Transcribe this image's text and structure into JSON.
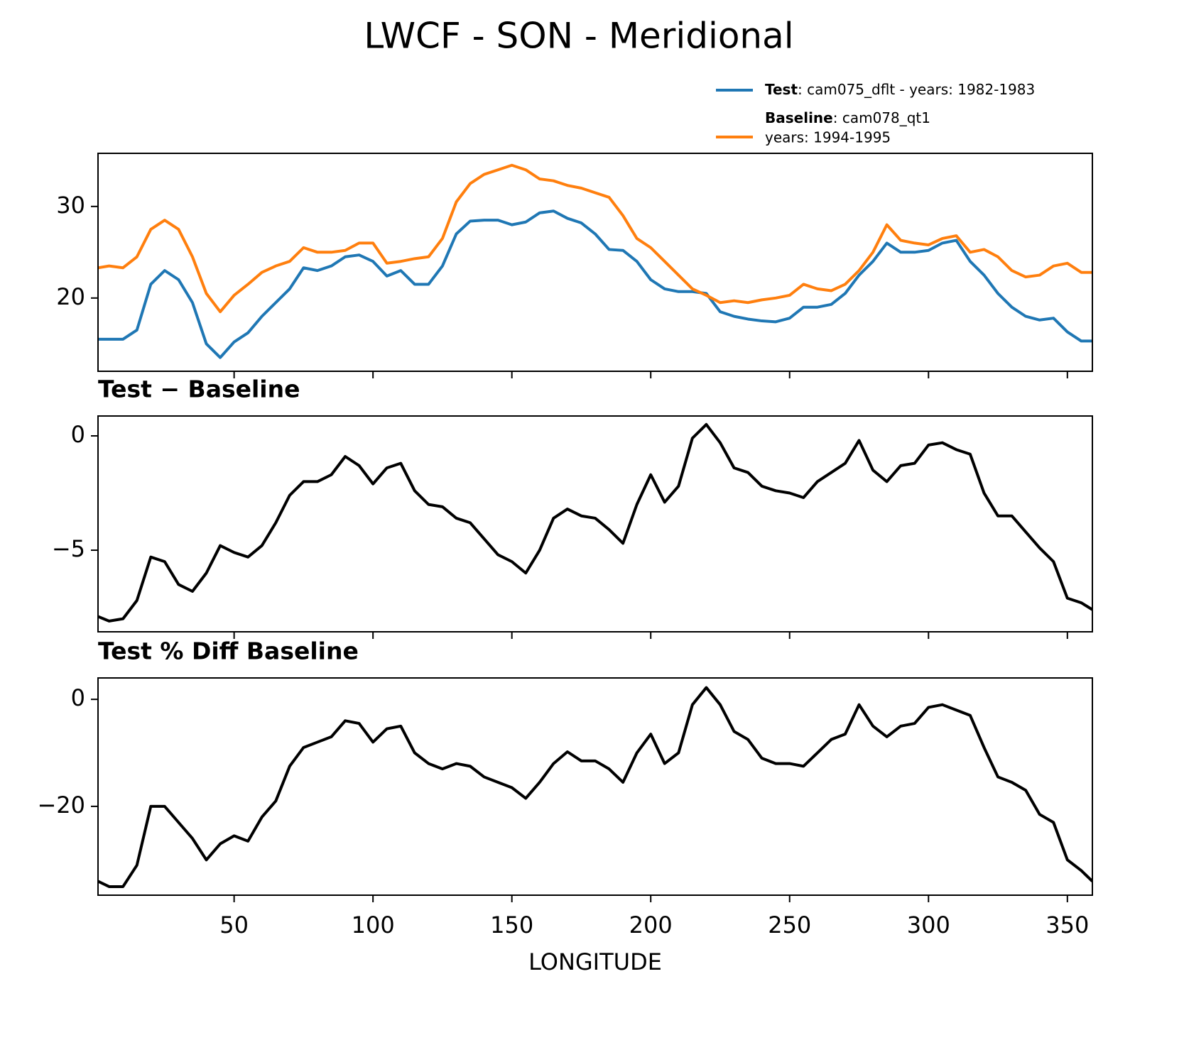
{
  "title": "LWCF - SON - Meridional",
  "chart_data": [
    {
      "type": "line",
      "x": [
        1,
        5,
        10,
        15,
        20,
        25,
        30,
        35,
        40,
        45,
        50,
        55,
        60,
        65,
        70,
        75,
        80,
        85,
        90,
        95,
        100,
        105,
        110,
        115,
        120,
        125,
        130,
        135,
        140,
        145,
        150,
        155,
        160,
        165,
        170,
        175,
        180,
        185,
        190,
        195,
        200,
        205,
        210,
        215,
        220,
        225,
        230,
        235,
        240,
        245,
        250,
        255,
        260,
        265,
        270,
        275,
        280,
        285,
        290,
        295,
        300,
        305,
        310,
        315,
        320,
        325,
        330,
        335,
        340,
        345,
        350,
        355,
        359
      ],
      "series": [
        {
          "name": "Test",
          "description": [
            ": cam075_dflt - years: 1982-1983"
          ],
          "color": "#1f77b4",
          "values": [
            15.5,
            15.5,
            15.5,
            16.5,
            21.5,
            23.0,
            22.0,
            19.5,
            15.0,
            13.5,
            15.2,
            16.2,
            18.0,
            19.5,
            21.0,
            23.3,
            23.0,
            23.5,
            24.5,
            24.7,
            24.0,
            22.4,
            23.0,
            21.5,
            21.5,
            23.5,
            27.0,
            28.4,
            28.5,
            28.5,
            28.0,
            28.3,
            29.3,
            29.5,
            28.7,
            28.2,
            27.0,
            25.3,
            25.2,
            24.0,
            22.0,
            21.0,
            20.7,
            20.7,
            20.5,
            18.5,
            18.0,
            17.7,
            17.5,
            17.4,
            17.8,
            19.0,
            19.0,
            19.3,
            20.5,
            22.5,
            24.0,
            26.0,
            25.0,
            25.0,
            25.2,
            26.0,
            26.3,
            24.0,
            22.5,
            20.5,
            19.0,
            18.0,
            17.6,
            17.8,
            16.3,
            15.3,
            15.3
          ]
        },
        {
          "name": "Baseline",
          "description": [
            ": cam078_qt1",
            "years: 1994-1995"
          ],
          "color": "#ff7f0e",
          "values": [
            23.3,
            23.5,
            23.3,
            24.5,
            27.5,
            28.5,
            27.5,
            24.5,
            20.5,
            18.5,
            20.3,
            21.5,
            22.8,
            23.5,
            24.0,
            25.5,
            25.0,
            25.0,
            25.2,
            26.0,
            26.0,
            23.8,
            24.0,
            24.3,
            24.5,
            26.5,
            30.5,
            32.5,
            33.5,
            34.0,
            34.5,
            34.0,
            33.0,
            32.8,
            32.3,
            32.0,
            31.5,
            31.0,
            29.0,
            26.5,
            25.5,
            24.0,
            22.5,
            21.0,
            20.3,
            19.5,
            19.7,
            19.5,
            19.8,
            20.0,
            20.3,
            21.5,
            21.0,
            20.8,
            21.5,
            23.0,
            25.0,
            28.0,
            26.3,
            26.0,
            25.8,
            26.5,
            26.8,
            25.0,
            25.3,
            24.5,
            23.0,
            22.3,
            22.5,
            23.5,
            23.8,
            22.8,
            22.8
          ]
        }
      ],
      "xlim": [
        1,
        359
      ],
      "xticks": [
        50,
        100,
        150,
        200,
        250,
        300,
        350
      ],
      "ylim": [
        12,
        35.8
      ],
      "yticks": [
        20,
        30
      ]
    },
    {
      "type": "line",
      "subtitle": "Test − Baseline",
      "x": [
        1,
        5,
        10,
        15,
        20,
        25,
        30,
        35,
        40,
        45,
        50,
        55,
        60,
        65,
        70,
        75,
        80,
        85,
        90,
        95,
        100,
        105,
        110,
        115,
        120,
        125,
        130,
        135,
        140,
        145,
        150,
        155,
        160,
        165,
        170,
        175,
        180,
        185,
        190,
        195,
        200,
        205,
        210,
        215,
        220,
        225,
        230,
        235,
        240,
        245,
        250,
        255,
        260,
        265,
        270,
        275,
        280,
        285,
        290,
        295,
        300,
        305,
        310,
        315,
        320,
        325,
        330,
        335,
        340,
        345,
        350,
        355,
        359
      ],
      "series": [
        {
          "color": "#000000",
          "values": [
            -7.9,
            -8.1,
            -8.0,
            -7.2,
            -5.3,
            -5.5,
            -6.5,
            -6.8,
            -6.0,
            -4.8,
            -5.1,
            -5.3,
            -4.8,
            -3.8,
            -2.6,
            -2.0,
            -2.0,
            -1.7,
            -0.9,
            -1.3,
            -2.1,
            -1.4,
            -1.2,
            -2.4,
            -3.0,
            -3.1,
            -3.6,
            -3.8,
            -4.5,
            -5.2,
            -5.5,
            -6.0,
            -5.0,
            -3.6,
            -3.2,
            -3.5,
            -3.6,
            -4.1,
            -4.7,
            -3.0,
            -1.7,
            -2.9,
            -2.2,
            -0.1,
            0.5,
            -0.3,
            -1.4,
            -1.6,
            -2.2,
            -2.4,
            -2.5,
            -2.7,
            -2.0,
            -1.6,
            -1.2,
            -0.2,
            -1.5,
            -2.0,
            -1.3,
            -1.2,
            -0.4,
            -0.3,
            -0.6,
            -0.8,
            -2.5,
            -3.5,
            -3.5,
            -4.2,
            -4.9,
            -5.5,
            -7.1,
            -7.3,
            -7.6
          ]
        }
      ],
      "xlim": [
        1,
        359
      ],
      "xticks": [
        50,
        100,
        150,
        200,
        250,
        300,
        350
      ],
      "ylim": [
        -8.57,
        0.87
      ],
      "yticks": [
        {
          "value": -5,
          "label": "−5"
        },
        0
      ]
    },
    {
      "type": "line",
      "subtitle": "Test % Diff Baseline",
      "xlabel": "LONGITUDE",
      "x": [
        1,
        5,
        10,
        15,
        20,
        25,
        30,
        35,
        40,
        45,
        50,
        55,
        60,
        65,
        70,
        75,
        80,
        85,
        90,
        95,
        100,
        105,
        110,
        115,
        120,
        125,
        130,
        135,
        140,
        145,
        150,
        155,
        160,
        165,
        170,
        175,
        180,
        185,
        190,
        195,
        200,
        205,
        210,
        215,
        220,
        225,
        230,
        235,
        240,
        245,
        250,
        255,
        260,
        265,
        270,
        275,
        280,
        285,
        290,
        295,
        300,
        305,
        310,
        315,
        320,
        325,
        330,
        335,
        340,
        345,
        350,
        355,
        359
      ],
      "series": [
        {
          "color": "#000000",
          "values": [
            -34,
            -35,
            -35,
            -31,
            -20,
            -20,
            -23,
            -26,
            -30,
            -27,
            -25.5,
            -26.5,
            -22,
            -19,
            -12.5,
            -9,
            -8,
            -7,
            -4,
            -4.5,
            -8,
            -5.5,
            -5,
            -10,
            -12,
            -13,
            -12,
            -12.5,
            -14.5,
            -15.5,
            -16.5,
            -18.5,
            -15.5,
            -12,
            -9.8,
            -11.5,
            -11.5,
            -13,
            -15.5,
            -10,
            -6.5,
            -12,
            -10,
            -1,
            2.2,
            -1,
            -6,
            -7.5,
            -11,
            -12,
            -12,
            -12.5,
            -10,
            -7.5,
            -6.5,
            -1,
            -5,
            -7,
            -5,
            -4.5,
            -1.5,
            -1,
            -2,
            -3,
            -9,
            -14.5,
            -15.5,
            -17,
            -21.5,
            -23,
            -30,
            -32,
            -34
          ]
        }
      ],
      "xlim": [
        1,
        359
      ],
      "xticks": [
        50,
        100,
        150,
        200,
        250,
        300,
        350
      ],
      "ylim": [
        -36.6,
        4.0
      ],
      "yticks": [
        {
          "value": -20,
          "label": "−20"
        },
        0
      ]
    }
  ]
}
